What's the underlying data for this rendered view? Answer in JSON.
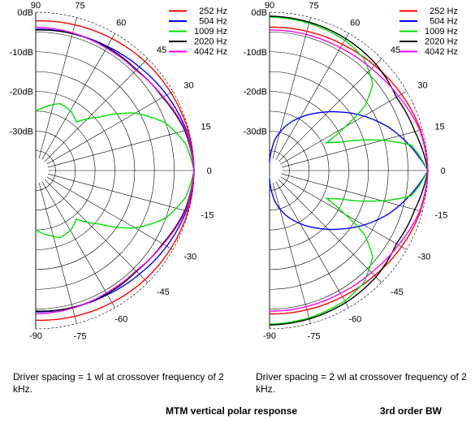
{
  "chart_data": [
    {
      "type": "polar",
      "title": "",
      "radial_labels": [
        "0dB",
        "-10dB",
        "-20dB",
        "-30dB"
      ],
      "radial_range_db": [
        -40,
        0
      ],
      "angle_labels": [
        "90",
        "75",
        "60",
        "45",
        "30",
        "15",
        "0",
        "-15",
        "-30",
        "-45",
        "-60",
        "-75",
        "-90"
      ],
      "angle_range_deg": [
        -90,
        90
      ],
      "legend": "top-right",
      "series": [
        {
          "name": "252 Hz",
          "color": "#ff0000",
          "angles": [
            0,
            15,
            30,
            45,
            60,
            75,
            90
          ],
          "values_db": [
            0,
            -0.2,
            -0.6,
            -1.0,
            -1.5,
            -1.9,
            -2.2
          ]
        },
        {
          "name": "504 Hz",
          "color": "#0000ff",
          "angles": [
            0,
            15,
            30,
            45,
            60,
            75,
            90
          ],
          "values_db": [
            0,
            -0.6,
            -1.8,
            -3.0,
            -3.8,
            -4.2,
            -4.3
          ]
        },
        {
          "name": "1009 Hz",
          "color": "#00e000",
          "angles": [
            0,
            10,
            20,
            30,
            40,
            50,
            60,
            70,
            80,
            90
          ],
          "values_db": [
            0,
            -1.5,
            -5.0,
            -11.0,
            -19.0,
            -24.0,
            -22.5,
            -22.0,
            -23.5,
            -25.0
          ]
        },
        {
          "name": "2020 Hz",
          "color": "#000000",
          "angles": [
            0,
            15,
            30,
            45,
            60,
            75,
            90
          ],
          "values_db": [
            0,
            -1.0,
            -3.0,
            -4.0,
            -4.0,
            -4.2,
            -4.5
          ]
        },
        {
          "name": "4042 Hz",
          "color": "#ff00ff",
          "angles": [
            0,
            15,
            30,
            45,
            60,
            75,
            90
          ],
          "values_db": [
            0,
            -0.8,
            -2.8,
            -4.2,
            -4.3,
            -4.0,
            -3.8
          ]
        }
      ]
    },
    {
      "type": "polar",
      "title": "",
      "radial_labels": [
        "0dB",
        "-10dB",
        "-20dB",
        "-30dB"
      ],
      "radial_range_db": [
        -40,
        0
      ],
      "angle_labels": [
        "90",
        "75",
        "60",
        "45",
        "30",
        "15",
        "0",
        "-15",
        "-30",
        "-45",
        "-60",
        "-75",
        "-90"
      ],
      "angle_range_deg": [
        -90,
        90
      ],
      "legend": "top-right",
      "series": [
        {
          "name": "252 Hz",
          "color": "#ff0000",
          "angles": [
            0,
            15,
            30,
            45,
            60,
            75,
            90
          ],
          "values_db": [
            0,
            -0.5,
            -1.5,
            -2.5,
            -3.2,
            -3.6,
            -3.8
          ]
        },
        {
          "name": "504 Hz",
          "color": "#0000ff",
          "angles": [
            0,
            10,
            20,
            30,
            40,
            50,
            60,
            70,
            80,
            85,
            90
          ],
          "values_db": [
            0,
            -4.0,
            -8.0,
            -12.5,
            -17.0,
            -21.0,
            -24.5,
            -28.0,
            -32.0,
            -35.0,
            -38.0
          ]
        },
        {
          "name": "1009 Hz",
          "color": "#00e000",
          "angles": [
            0,
            10,
            14,
            18,
            22,
            26,
            30,
            34,
            40,
            50,
            60,
            75,
            90
          ],
          "values_db": [
            0,
            -3.5,
            -9.0,
            -15.0,
            -21.0,
            -24.0,
            -18.0,
            -11.0,
            -6.0,
            -3.0,
            -2.0,
            -1.5,
            -1.2
          ]
        },
        {
          "name": "2020 Hz",
          "color": "#000000",
          "angles": [
            0,
            15,
            30,
            45,
            60,
            75,
            90
          ],
          "values_db": [
            0,
            -2.0,
            -3.0,
            -2.0,
            -1.5,
            -1.2,
            -1.0
          ]
        },
        {
          "name": "4042 Hz",
          "color": "#ff00ff",
          "angles": [
            0,
            15,
            30,
            45,
            60,
            75,
            90
          ],
          "values_db": [
            0,
            -0.7,
            -2.4,
            -3.6,
            -4.2,
            -4.4,
            -4.5
          ]
        }
      ]
    }
  ],
  "captions": {
    "left": "Driver spacing = 1 wl at crossover frequency of 2 kHz.",
    "right": "Driver spacing = 2 wl at crossover frequency of 2 kHz."
  },
  "footer": {
    "title": "MTM vertical polar response",
    "subtitle": "3rd order BW"
  }
}
